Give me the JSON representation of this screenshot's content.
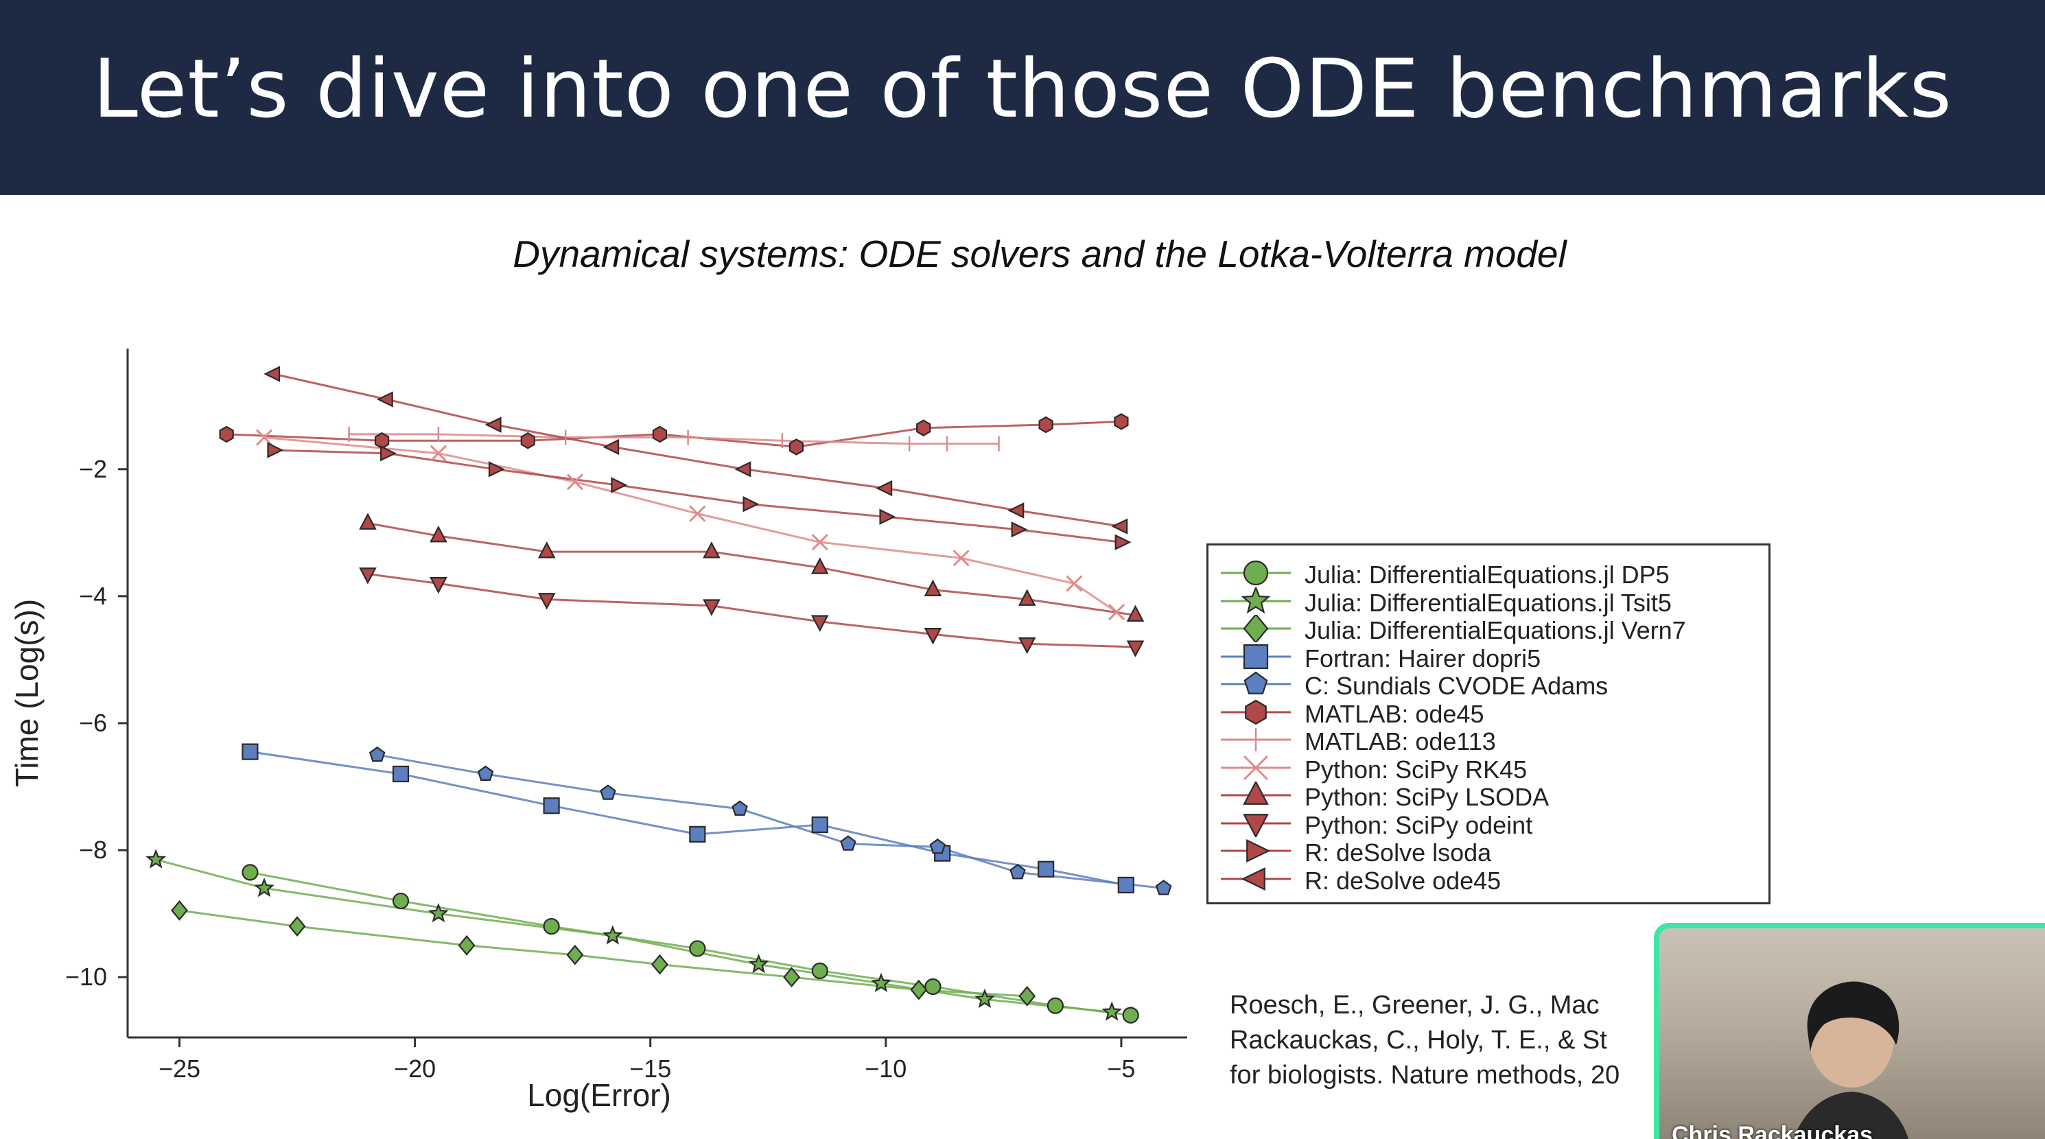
{
  "slide": {
    "title": "Let’s dive into one of those ODE benchmarks",
    "header_color": "#1e2a44"
  },
  "chart_data": {
    "type": "line",
    "title": "Dynamical systems: ODE solvers and the Lotka-Volterra model",
    "xlabel": "Log(Error)",
    "ylabel": "Time (Log(s))",
    "xlim": [
      -26.1,
      -3.6
    ],
    "ylim": [
      -10.95,
      -0.1
    ],
    "xticks": [
      -25,
      -20,
      -15,
      -10,
      -5
    ],
    "yticks": [
      -2,
      -4,
      -6,
      -8,
      -10
    ],
    "grid": false,
    "legend_position": "right",
    "series": [
      {
        "name": "Julia: DifferentialEquations.jl DP5",
        "color": "#6fae4f",
        "marker": "circle",
        "points": [
          [
            -23.5,
            -8.35
          ],
          [
            -20.3,
            -8.8
          ],
          [
            -17.1,
            -9.2
          ],
          [
            -14.0,
            -9.55
          ],
          [
            -11.4,
            -9.9
          ],
          [
            -9.0,
            -10.15
          ],
          [
            -6.4,
            -10.45
          ],
          [
            -4.8,
            -10.6
          ]
        ]
      },
      {
        "name": "Julia: DifferentialEquations.jl Tsit5",
        "color": "#6fae4f",
        "marker": "star",
        "points": [
          [
            -25.5,
            -8.15
          ],
          [
            -23.2,
            -8.6
          ],
          [
            -19.5,
            -9.0
          ],
          [
            -15.8,
            -9.35
          ],
          [
            -12.7,
            -9.8
          ],
          [
            -10.1,
            -10.1
          ],
          [
            -7.9,
            -10.35
          ],
          [
            -5.2,
            -10.55
          ]
        ]
      },
      {
        "name": "Julia: DifferentialEquations.jl Vern7",
        "color": "#6fae4f",
        "marker": "diamond",
        "points": [
          [
            -25.0,
            -8.95
          ],
          [
            -22.5,
            -9.2
          ],
          [
            -18.9,
            -9.5
          ],
          [
            -16.6,
            -9.65
          ],
          [
            -14.8,
            -9.8
          ],
          [
            -12.0,
            -10.0
          ],
          [
            -9.3,
            -10.2
          ],
          [
            -7.0,
            -10.3
          ]
        ]
      },
      {
        "name": "Fortran: Hairer dopri5",
        "color": "#5b7fc0",
        "marker": "square",
        "points": [
          [
            -23.5,
            -6.45
          ],
          [
            -20.3,
            -6.8
          ],
          [
            -17.1,
            -7.3
          ],
          [
            -14.0,
            -7.75
          ],
          [
            -11.4,
            -7.6
          ],
          [
            -8.8,
            -8.05
          ],
          [
            -6.6,
            -8.3
          ],
          [
            -4.9,
            -8.55
          ]
        ]
      },
      {
        "name": "C: Sundials CVODE Adams",
        "color": "#5b7fc0",
        "marker": "pentagon",
        "points": [
          [
            -20.8,
            -6.5
          ],
          [
            -18.5,
            -6.8
          ],
          [
            -15.9,
            -7.1
          ],
          [
            -13.1,
            -7.35
          ],
          [
            -10.8,
            -7.9
          ],
          [
            -8.9,
            -7.95
          ],
          [
            -7.2,
            -8.35
          ],
          [
            -4.1,
            -8.6
          ]
        ]
      },
      {
        "name": "MATLAB: ode45",
        "color": "#b04848",
        "marker": "hexagon",
        "points": [
          [
            -24.0,
            -1.45
          ],
          [
            -20.7,
            -1.55
          ],
          [
            -17.6,
            -1.55
          ],
          [
            -14.8,
            -1.45
          ],
          [
            -11.9,
            -1.65
          ],
          [
            -9.2,
            -1.35
          ],
          [
            -6.6,
            -1.3
          ],
          [
            -5.0,
            -1.25
          ]
        ]
      },
      {
        "name": "MATLAB: ode113",
        "color": "#d88a8a",
        "marker": "vline",
        "points": [
          [
            -21.4,
            -1.45
          ],
          [
            -19.5,
            -1.45
          ],
          [
            -16.8,
            -1.5
          ],
          [
            -14.2,
            -1.5
          ],
          [
            -12.2,
            -1.55
          ],
          [
            -9.5,
            -1.6
          ],
          [
            -8.7,
            -1.6
          ],
          [
            -7.6,
            -1.6
          ]
        ]
      },
      {
        "name": "Python: SciPy RK45",
        "color": "#e08a8a",
        "marker": "x",
        "points": [
          [
            -23.2,
            -1.5
          ],
          [
            -19.5,
            -1.75
          ],
          [
            -16.6,
            -2.2
          ],
          [
            -14.0,
            -2.7
          ],
          [
            -11.4,
            -3.15
          ],
          [
            -8.4,
            -3.4
          ],
          [
            -6.0,
            -3.8
          ],
          [
            -5.1,
            -4.25
          ]
        ]
      },
      {
        "name": "Python: SciPy LSODA",
        "color": "#b04848",
        "marker": "triangle-up",
        "points": [
          [
            -21.0,
            -2.85
          ],
          [
            -19.5,
            -3.05
          ],
          [
            -17.2,
            -3.3
          ],
          [
            -13.7,
            -3.3
          ],
          [
            -11.4,
            -3.55
          ],
          [
            -9.0,
            -3.9
          ],
          [
            -7.0,
            -4.05
          ],
          [
            -4.7,
            -4.3
          ]
        ]
      },
      {
        "name": "Python: SciPy odeint",
        "color": "#b04848",
        "marker": "triangle-down",
        "points": [
          [
            -21.0,
            -3.65
          ],
          [
            -19.5,
            -3.8
          ],
          [
            -17.2,
            -4.05
          ],
          [
            -13.7,
            -4.15
          ],
          [
            -11.4,
            -4.4
          ],
          [
            -9.0,
            -4.6
          ],
          [
            -7.0,
            -4.75
          ],
          [
            -4.7,
            -4.8
          ]
        ]
      },
      {
        "name": "R: deSolve lsoda",
        "color": "#b04848",
        "marker": "triangle-right",
        "points": [
          [
            -23.0,
            -1.7
          ],
          [
            -20.6,
            -1.75
          ],
          [
            -18.3,
            -2.0
          ],
          [
            -15.7,
            -2.25
          ],
          [
            -12.9,
            -2.55
          ],
          [
            -10.0,
            -2.75
          ],
          [
            -7.2,
            -2.95
          ],
          [
            -5.0,
            -3.15
          ]
        ]
      },
      {
        "name": "R: deSolve ode45",
        "color": "#b04848",
        "marker": "triangle-left",
        "points": [
          [
            -23.0,
            -0.5
          ],
          [
            -20.6,
            -0.9
          ],
          [
            -18.3,
            -1.3
          ],
          [
            -15.8,
            -1.65
          ],
          [
            -13.0,
            -2.0
          ],
          [
            -10.0,
            -2.3
          ],
          [
            -7.2,
            -2.65
          ],
          [
            -5.0,
            -2.9
          ]
        ]
      }
    ]
  },
  "citation": {
    "lines": [
      "Roesch, E., Greener, J. G., Mac",
      "Rackauckas, C., Holy, T. E., & St",
      "for biologists. Nature methods, 20"
    ]
  },
  "webcam": {
    "name": "Chris Rackauckas",
    "border_color": "#3ee6a8"
  }
}
